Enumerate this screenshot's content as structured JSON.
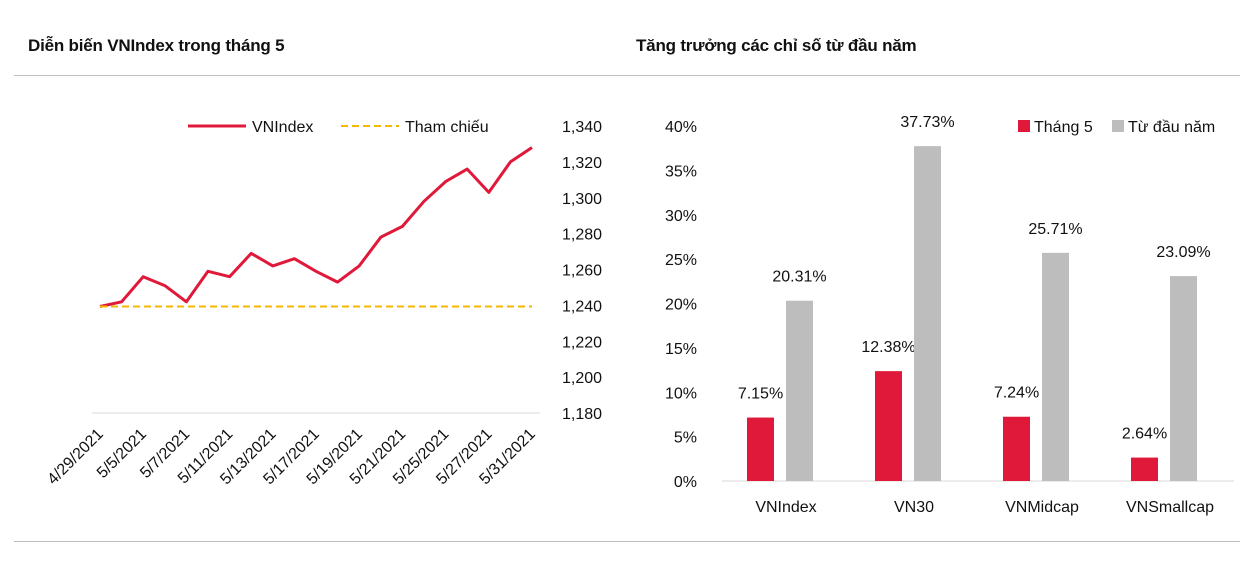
{
  "left_title": "Diễn biến VNIndex trong tháng 5",
  "right_title": "Tăng trưởng các chỉ số từ đầu năm",
  "colors": {
    "red": "#E0193A",
    "orange": "#F5B700",
    "gray": "#BDBDBD",
    "rule": "#BDBDBD"
  },
  "chart_data": [
    {
      "type": "line",
      "title": "Diễn biến VNIndex trong tháng 5",
      "legend_position": "top",
      "y_axis_side": "right",
      "ylim": [
        1180,
        1340
      ],
      "yticks": [
        1180,
        1200,
        1220,
        1240,
        1260,
        1280,
        1300,
        1320,
        1340
      ],
      "ytick_labels": [
        "1,180",
        "1,200",
        "1,220",
        "1,240",
        "1,260",
        "1,280",
        "1,300",
        "1,320",
        "1,340"
      ],
      "x": [
        "4/29/2021",
        "5/4/2021",
        "5/5/2021",
        "5/6/2021",
        "5/7/2021",
        "5/10/2021",
        "5/11/2021",
        "5/12/2021",
        "5/13/2021",
        "5/14/2021",
        "5/17/2021",
        "5/18/2021",
        "5/19/2021",
        "5/20/2021",
        "5/21/2021",
        "5/24/2021",
        "5/25/2021",
        "5/26/2021",
        "5/27/2021",
        "5/28/2021",
        "5/31/2021"
      ],
      "xtick_labels": [
        "4/29/2021",
        "5/5/2021",
        "5/7/2021",
        "5/11/2021",
        "5/13/2021",
        "5/17/2021",
        "5/19/2021",
        "5/21/2021",
        "5/25/2021",
        "5/27/2021",
        "5/31/2021"
      ],
      "series": [
        {
          "name": "VNIndex",
          "color": "#E0193A",
          "style": "solid",
          "values": [
            1239.4,
            1242,
            1256,
            1251,
            1242,
            1259,
            1256,
            1269,
            1262,
            1266,
            1259,
            1253,
            1262,
            1278,
            1284,
            1298,
            1309,
            1316,
            1303,
            1320,
            1328
          ]
        },
        {
          "name": "Tham chiếu",
          "color": "#F5B700",
          "style": "dashed",
          "values": [
            1239.4,
            1239.4,
            1239.4,
            1239.4,
            1239.4,
            1239.4,
            1239.4,
            1239.4,
            1239.4,
            1239.4,
            1239.4,
            1239.4,
            1239.4,
            1239.4,
            1239.4,
            1239.4,
            1239.4,
            1239.4,
            1239.4,
            1239.4,
            1239.4
          ]
        }
      ]
    },
    {
      "type": "bar",
      "title": "Tăng trưởng các chỉ số từ đầu năm",
      "legend_position": "top-right",
      "ylim": [
        0,
        40
      ],
      "yticks": [
        0,
        5,
        10,
        15,
        20,
        25,
        30,
        35,
        40
      ],
      "ytick_labels": [
        "0%",
        "5%",
        "10%",
        "15%",
        "20%",
        "25%",
        "30%",
        "35%",
        "40%"
      ],
      "categories": [
        "VNIndex",
        "VN30",
        "VNMidcap",
        "VNSmallcap"
      ],
      "series": [
        {
          "name": "Tháng 5",
          "color": "#E0193A",
          "values": [
            7.15,
            12.38,
            7.24,
            2.64
          ],
          "labels": [
            "7.15%",
            "12.38%",
            "7.24%",
            "2.64%"
          ]
        },
        {
          "name": "Từ đầu năm",
          "color": "#BDBDBD",
          "values": [
            20.31,
            37.73,
            25.71,
            23.09
          ],
          "labels": [
            "20.31%",
            "37.73%",
            "25.71%",
            "23.09%"
          ]
        }
      ]
    }
  ]
}
